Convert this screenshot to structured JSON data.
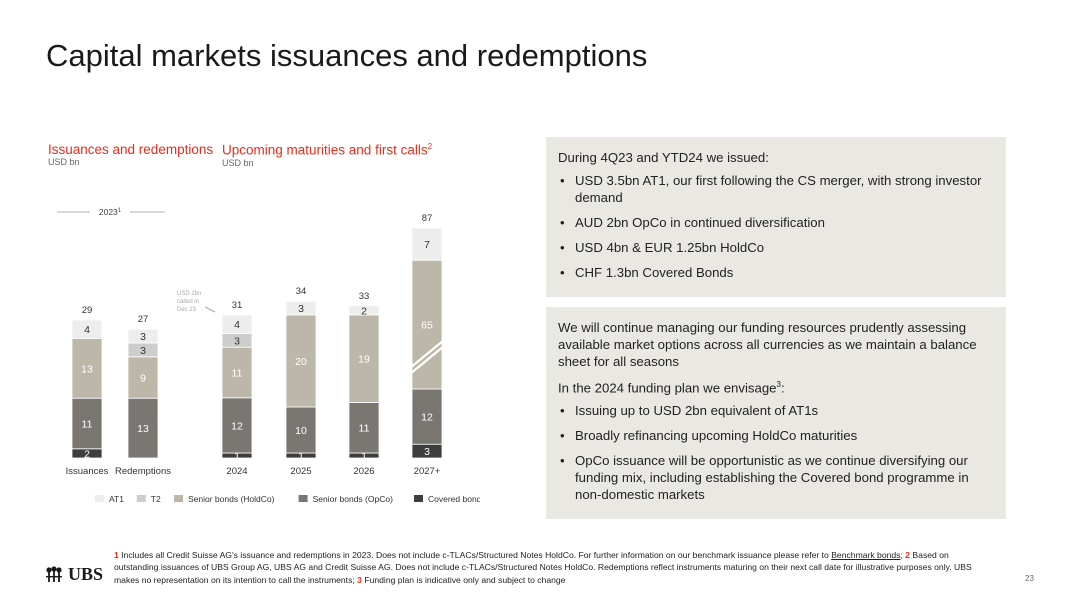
{
  "page": {
    "title": "Capital markets issuances and redemptions",
    "page_number": "23",
    "logo_text": "UBS"
  },
  "left_panel": {
    "title": "Issuances and redemptions",
    "unit": "USD bn"
  },
  "right_panel": {
    "title": "Upcoming maturities and first calls",
    "title_sup": "2",
    "unit": "USD bn"
  },
  "chart_data": {
    "type": "bar",
    "stacked": true,
    "categories": [
      "Issuances",
      "Redemptions",
      "2024",
      "2025",
      "2026",
      "2027+"
    ],
    "group_label": "2023",
    "group_label_sup": "1",
    "annotation": "USD 2bn called in Dec 23",
    "totals": [
      29,
      27,
      31,
      34,
      33,
      87
    ],
    "series": [
      {
        "name": "Covered bonds",
        "color": "#3d3d3d",
        "values": [
          2,
          null,
          1,
          1,
          1,
          3
        ]
      },
      {
        "name": "Senior bonds (OpCo)",
        "color": "#7a7672",
        "values": [
          11,
          13,
          12,
          10,
          11,
          12
        ]
      },
      {
        "name": "Senior bonds (HoldCo)",
        "color": "#bcb7a8",
        "values": [
          13,
          9,
          11,
          20,
          19,
          65
        ]
      },
      {
        "name": "T2",
        "color": "#cdcdcd",
        "values": [
          null,
          3,
          3,
          null,
          null,
          null
        ]
      },
      {
        "name": "AT1",
        "color": "#ededed",
        "values": [
          4,
          3,
          4,
          3,
          2,
          7
        ]
      }
    ],
    "legend_order": [
      "AT1",
      "T2",
      "Senior bonds (HoldCo)",
      "Senior bonds (OpCo)",
      "Covered bonds"
    ],
    "broken_axis_category": "2027+"
  },
  "box1": {
    "intro": "During 4Q23 and YTD24 we issued:",
    "bullets": [
      "USD 3.5bn AT1, our first following the CS merger, with strong investor demand",
      "AUD 2bn OpCo in continued diversification",
      "USD 4bn & EUR 1.25bn HoldCo",
      "CHF 1.3bn Covered Bonds"
    ]
  },
  "box2": {
    "para": "We will continue managing our funding resources prudently assessing available market options across all currencies as we maintain a balance sheet for all seasons",
    "intro": "In the 2024 funding plan we envisage",
    "intro_sup": "3",
    "intro_end": ":",
    "bullets": [
      "Issuing up to USD 2bn equivalent of AT1s",
      "Broadly refinancing upcoming HoldCo maturities",
      "OpCo issuance will be opportunistic as we continue diversifying our funding mix, including establishing the Covered bond programme in non-domestic markets"
    ]
  },
  "footnotes": {
    "n1": "1",
    "t1a": " Includes all Credit Suisse AG's issuance and redemptions in 2023. Does not include c-TLACs/Structured Notes HoldCo.  For further information on our benchmark issuance please refer to ",
    "link": "Benchmark bonds",
    "t1b": "; ",
    "n2": "2",
    "t2": " Based on outstanding issuances of UBS Group AG, UBS AG and Credit Suisse AG. Does not include c-TLACs/Structured Notes HoldCo.  Redemptions reflect instruments maturing on their next call date for illustrative purposes only. UBS makes no representation on its intention to call the instruments; ",
    "n3": "3",
    "t3": " Funding plan is indicative only and subject to change"
  }
}
